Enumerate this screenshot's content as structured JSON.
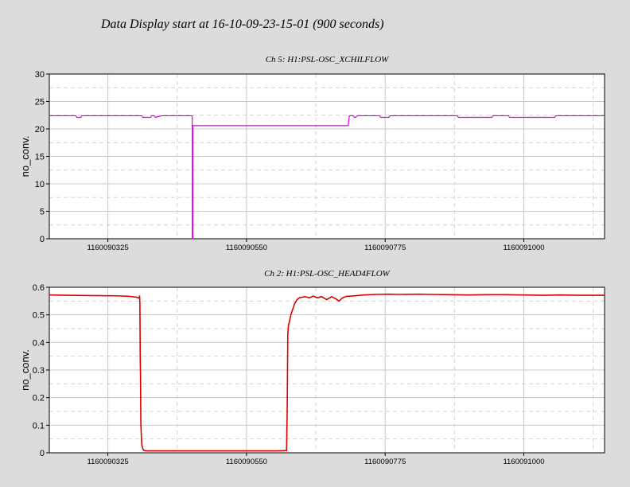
{
  "page_title": "Data Display start at 16-10-09-23-15-01 (900 seconds)",
  "chart_data": [
    {
      "type": "line",
      "title": "Ch 5: H1:PSL-OSC_XCHILFLOW",
      "xlabel": "",
      "ylabel": "no_conv.",
      "color": "#e000e0",
      "xlim": [
        1160090230,
        1160091131
      ],
      "ylim": [
        0,
        30
      ],
      "yticks": [
        0,
        5,
        10,
        15,
        20,
        25,
        30
      ],
      "ytick_labels": [
        "0",
        "5",
        "10",
        "15",
        "20",
        "25",
        "30"
      ],
      "xticks": [
        1160090325,
        1160090550,
        1160090775,
        1160091000
      ],
      "xtick_labels": [
        "1160090325",
        "1160090550",
        "1160090775",
        "1160091000"
      ],
      "grid": true,
      "series": [
        {
          "x": [
            1160090230,
            1160090273,
            1160090275,
            1160090281,
            1160090283,
            1160090380,
            1160090382,
            1160090394,
            1160090396,
            1160090400,
            1160090402,
            1160090412,
            1160090462,
            1160090462,
            1160090463,
            1160090463,
            1160090715,
            1160090717,
            1160090721,
            1160090723,
            1160090725,
            1160090727,
            1160090730,
            1160090732,
            1160090765,
            1160090766,
            1160090768,
            1160090770,
            1160090771,
            1160090773,
            1160090775,
            1160090776,
            1160090778,
            1160090781,
            1160090783,
            1160090892,
            1160090894,
            1160090948,
            1160090950,
            1160090975,
            1160090977,
            1160091050,
            1160091052,
            1160091131
          ],
          "y": [
            22.4,
            22.4,
            22.1,
            22.1,
            22.4,
            22.4,
            22.1,
            22.1,
            22.4,
            22.4,
            22.1,
            22.4,
            22.4,
            0,
            0,
            20.6,
            20.6,
            22.4,
            22.4,
            22.4,
            22.1,
            22.1,
            22.4,
            22.4,
            22.4,
            22.4,
            22.1,
            22.1,
            22.1,
            22.1,
            22.1,
            22.1,
            22.1,
            22.1,
            22.4,
            22.4,
            22.1,
            22.1,
            22.4,
            22.4,
            22.1,
            22.1,
            22.4,
            22.4
          ]
        }
      ]
    },
    {
      "type": "line",
      "title": "Ch 2: H1:PSL-OSC_HEAD4FLOW",
      "xlabel": "",
      "ylabel": "no_conv.",
      "color": "#dd0000",
      "xlim": [
        1160090230,
        1160091131
      ],
      "ylim": [
        0,
        0.6
      ],
      "yticks": [
        0,
        0.1,
        0.2,
        0.3,
        0.4,
        0.5,
        0.6
      ],
      "ytick_labels": [
        "0",
        "0.1",
        "0.2",
        "0.3",
        "0.4",
        "0.5",
        "0.6"
      ],
      "xticks": [
        1160090325,
        1160090550,
        1160090775,
        1160091000
      ],
      "xtick_labels": [
        "1160090325",
        "1160090550",
        "1160090775",
        "1160091000"
      ],
      "grid": true,
      "series": [
        {
          "x": [
            1160090230,
            1160090260,
            1160090300,
            1160090340,
            1160090360,
            1160090372,
            1160090376,
            1160090376.5,
            1160090377,
            1160090377.5,
            1160090378,
            1160090378.5,
            1160090379,
            1160090380,
            1160090382,
            1160090384,
            1160090388,
            1160090400,
            1160090430,
            1160090480,
            1160090520,
            1160090560,
            1160090600,
            1160090615,
            1160090616,
            1160090617,
            1160090618,
            1160090620,
            1160090622,
            1160090625,
            1160090628,
            1160090632,
            1160090636,
            1160090640,
            1160090645,
            1160090652,
            1160090658,
            1160090665,
            1160090672,
            1160090680,
            1160090688,
            1160090695,
            1160090700,
            1160090706,
            1160090712,
            1160090720,
            1160090730,
            1160090740,
            1160090760,
            1160090780,
            1160090800,
            1160090830,
            1160090850,
            1160090880,
            1160090910,
            1160090940,
            1160090970,
            1160091000,
            1160091030,
            1160091060,
            1160091090,
            1160091131
          ],
          "y": [
            0.572,
            0.571,
            0.57,
            0.569,
            0.567,
            0.564,
            0.56,
            0.57,
            0.54,
            0.35,
            0.28,
            0.11,
            0.08,
            0.03,
            0.012,
            0.008,
            0.007,
            0.007,
            0.007,
            0.007,
            0.007,
            0.007,
            0.007,
            0.008,
            0.15,
            0.43,
            0.46,
            0.48,
            0.5,
            0.52,
            0.54,
            0.555,
            0.562,
            0.564,
            0.566,
            0.562,
            0.568,
            0.562,
            0.566,
            0.555,
            0.566,
            0.558,
            0.55,
            0.562,
            0.567,
            0.568,
            0.57,
            0.572,
            0.574,
            0.575,
            0.574,
            0.575,
            0.574,
            0.573,
            0.572,
            0.573,
            0.573,
            0.572,
            0.571,
            0.572,
            0.571,
            0.571
          ]
        }
      ]
    }
  ]
}
